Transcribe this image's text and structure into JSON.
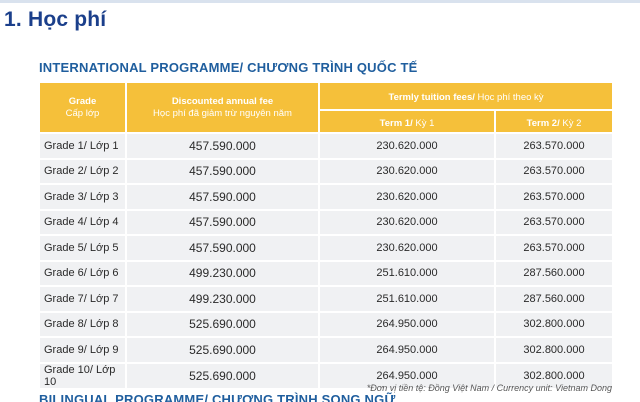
{
  "section_title": "1. Học phí",
  "programme_title": "INTERNATIONAL PROGRAMME/ CHƯƠNG TRÌNH QUỐC TẾ",
  "table": {
    "headers": {
      "grade_en": "Grade",
      "grade_vi": "Cấp lớp",
      "annual_en": "Discounted annual fee",
      "annual_vi": "Học phí đã giảm trừ nguyên năm",
      "termly_en": "Termly tuition fees/",
      "termly_vi": " Học phí theo kỳ",
      "term1_en": "Term 1/",
      "term1_vi": " Kỳ 1",
      "term2_en": "Term 2/",
      "term2_vi": " Kỳ 2"
    },
    "rows": [
      {
        "grade": "Grade 1/ Lớp 1",
        "annual": "457.590.000",
        "term1": "230.620.000",
        "term2": "263.570.000"
      },
      {
        "grade": "Grade 2/ Lớp 2",
        "annual": "457.590.000",
        "term1": "230.620.000",
        "term2": "263.570.000"
      },
      {
        "grade": "Grade 3/ Lớp 3",
        "annual": "457.590.000",
        "term1": "230.620.000",
        "term2": "263.570.000"
      },
      {
        "grade": "Grade 4/ Lớp 4",
        "annual": "457.590.000",
        "term1": "230.620.000",
        "term2": "263.570.000"
      },
      {
        "grade": "Grade 5/ Lớp 5",
        "annual": "457.590.000",
        "term1": "230.620.000",
        "term2": "263.570.000"
      },
      {
        "grade": "Grade 6/ Lớp 6",
        "annual": "499.230.000",
        "term1": "251.610.000",
        "term2": "287.560.000"
      },
      {
        "grade": "Grade 7/ Lớp 7",
        "annual": "499.230.000",
        "term1": "251.610.000",
        "term2": "287.560.000"
      },
      {
        "grade": "Grade 8/ Lớp 8",
        "annual": "525.690.000",
        "term1": "264.950.000",
        "term2": "302.800.000"
      },
      {
        "grade": "Grade 9/ Lớp 9",
        "annual": "525.690.000",
        "term1": "264.950.000",
        "term2": "302.800.000"
      },
      {
        "grade": "Grade 10/ Lớp 10",
        "annual": "525.690.000",
        "term1": "264.950.000",
        "term2": "302.800.000"
      }
    ]
  },
  "currency_note": "*Đơn vị tiền tệ: Đồng Việt Nam / Currency unit: Vietnam Dong",
  "next_programme_title": "BILINGUAL PROGRAMME/ CHƯƠNG TRÌNH SONG NGỮ",
  "colors": {
    "header_bg": "#f5c03a",
    "title_blue": "#1b3f8b",
    "programme_blue": "#1f5e9e",
    "cell_bg": "#f0f1f3"
  }
}
